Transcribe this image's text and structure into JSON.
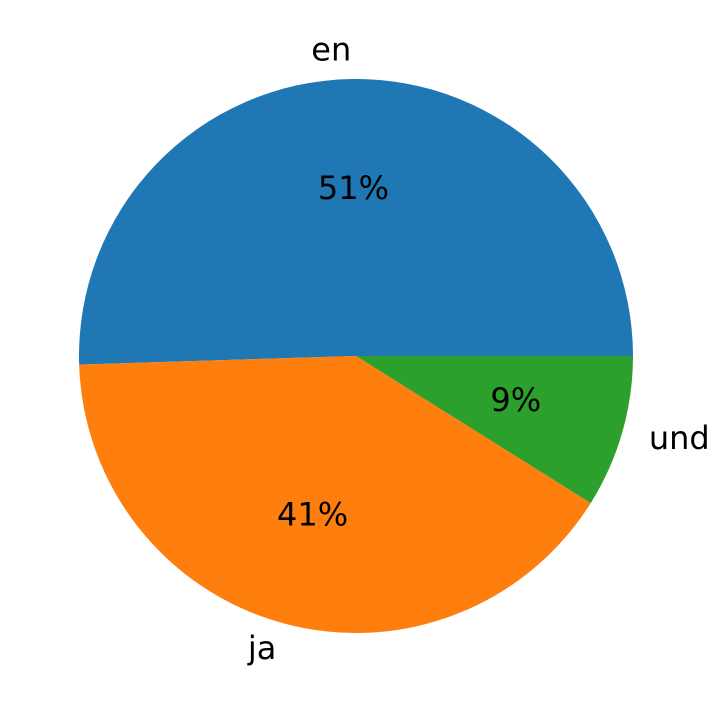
{
  "chart_data": {
    "type": "pie",
    "categories": [
      "en",
      "ja",
      "und"
    ],
    "values": [
      51,
      41,
      9
    ],
    "value_labels": [
      "51%",
      "41%",
      "9%"
    ],
    "colors": [
      "#1f77b4",
      "#ff7f0e",
      "#2ca02c"
    ]
  }
}
